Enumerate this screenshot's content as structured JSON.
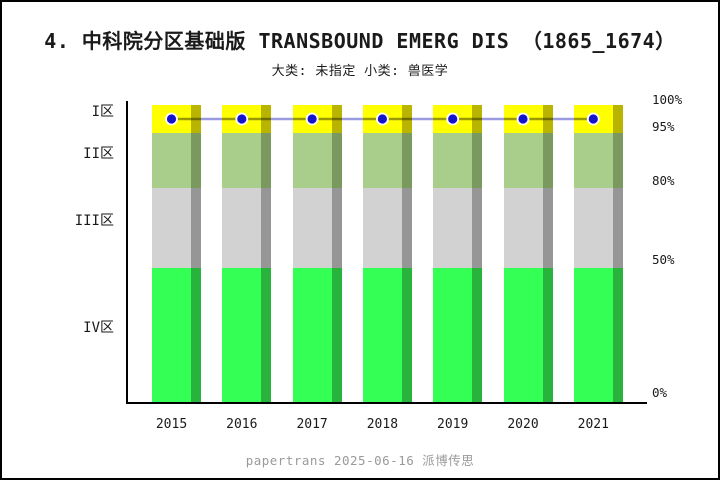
{
  "header": {
    "title": "4.  中科院分区基础版 TRANSBOUND EMERG DIS （1865_1674）",
    "subtitle": "大类: 未指定 小类: 兽医学"
  },
  "footer": {
    "text": "papertrans 2025-06-16 派博传思"
  },
  "chart_data": {
    "type": "bar",
    "stacked": true,
    "title": "4.  中科院分区基础版 TRANSBOUND EMERG DIS （1865_1674）",
    "subtitle": "大类: 未指定 小类: 兽医学",
    "categories": [
      "2015",
      "2016",
      "2017",
      "2018",
      "2019",
      "2020",
      "2021"
    ],
    "series": [
      {
        "name": "I区",
        "zone_pct": [
          95,
          100
        ],
        "values": [
          5,
          5,
          5,
          5,
          5,
          5,
          5
        ],
        "color": "#ffff00",
        "shadow_color": "#b9b400"
      },
      {
        "name": "II区",
        "zone_pct": [
          80,
          95
        ],
        "values": [
          15,
          15,
          15,
          15,
          15,
          15,
          15
        ],
        "color": "#a9ce8c",
        "shadow_color": "#79995e"
      },
      {
        "name": "III区",
        "zone_pct": [
          50,
          80
        ],
        "values": [
          30,
          30,
          30,
          30,
          30,
          30,
          30
        ],
        "color": "#d2d2d2",
        "shadow_color": "#969696"
      },
      {
        "name": "IV区",
        "zone_pct": [
          0,
          50
        ],
        "values": [
          50,
          50,
          50,
          50,
          50,
          50,
          50
        ],
        "color": "#33ff55",
        "shadow_color": "#28b43c"
      }
    ],
    "line_series": {
      "values_pct": [
        97.5,
        97.5,
        97.5,
        97.5,
        97.5,
        97.5,
        97.5
      ],
      "dot_color": "#1414cc",
      "line_color": "#9a9ae0"
    },
    "left_axis_labels": [
      "I区",
      "II区",
      "III区",
      "IV区"
    ],
    "right_axis_ticks": [
      "100%",
      "95%",
      "80%",
      "50%",
      "0%"
    ],
    "ylim": [
      0,
      100
    ],
    "xlabel": "",
    "ylabel": "",
    "grid": false,
    "legend": false
  }
}
